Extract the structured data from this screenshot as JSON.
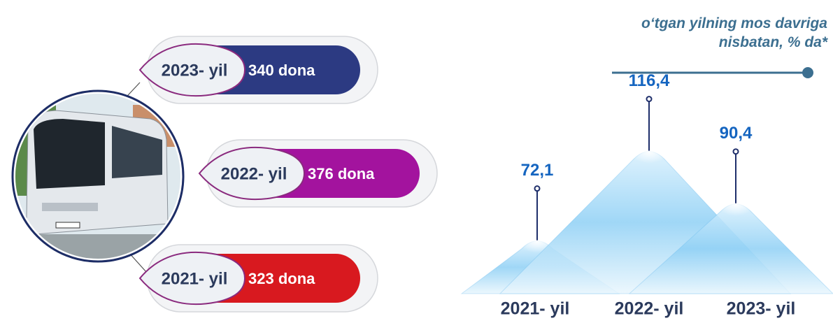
{
  "items": [
    {
      "year": "2023- yil",
      "amount": "340 dona",
      "color": "#2c3a82"
    },
    {
      "year": "2022- yil",
      "amount": "376 dona",
      "color": "#a3139e"
    },
    {
      "year": "2021- yil",
      "amount": "323 dona",
      "color": "#d8191f"
    }
  ],
  "chart_data": {
    "type": "peak",
    "subtitle": "o‘tgan yilning mos davriga nisbatan, % da*",
    "categories": [
      "2021- yil",
      "2022- yil",
      "2023- yil"
    ],
    "values": [
      72.1,
      116.4,
      90.4
    ],
    "value_labels": [
      "72,1",
      "116,4",
      "90,4"
    ],
    "color": "#5ab4ea"
  }
}
